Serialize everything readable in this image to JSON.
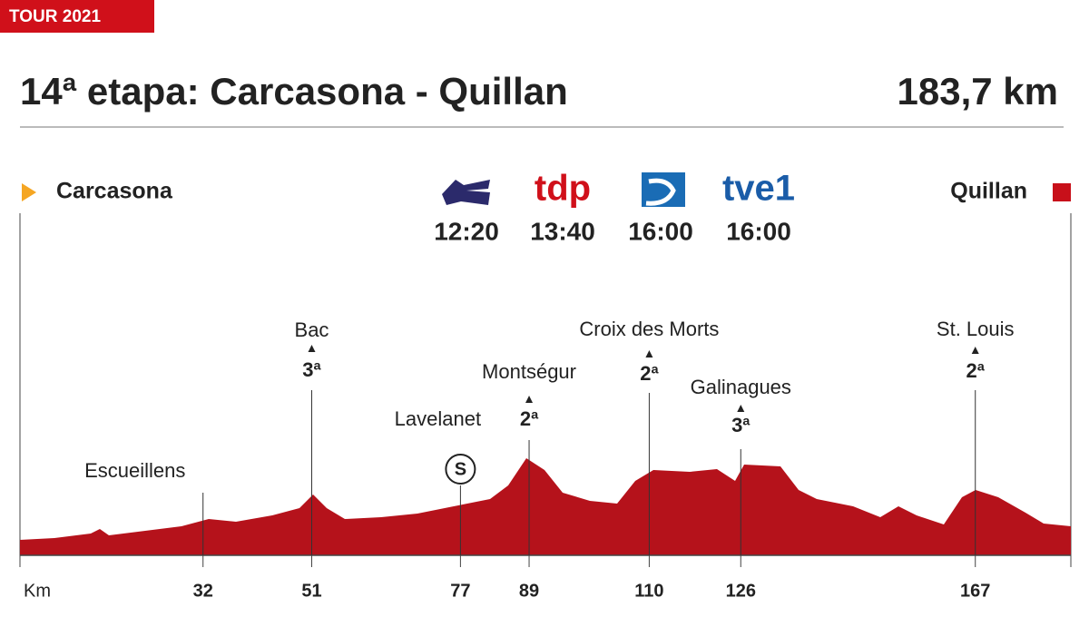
{
  "chart_data": {
    "type": "profile",
    "label": "TOUR 2021",
    "title": "14ª etapa: Carcasona - Quillan",
    "distance": "183,7 km",
    "start": "Carcasona",
    "finish": "Quillan",
    "broadcasters": [
      {
        "time": "12:20"
      },
      {
        "logo": "tdp",
        "time": "13:40"
      },
      {
        "time": "16:00"
      },
      {
        "logo": "tve1",
        "time": "16:00"
      }
    ],
    "color": "#b5121b",
    "xlim": [
      0,
      183.7
    ],
    "xticks": [
      {
        "value": 0,
        "label": "Km"
      },
      32,
      51,
      77,
      89,
      110,
      126,
      167
    ],
    "points": [
      {
        "name": "Escueillens",
        "km": 32
      },
      {
        "name": "Bac",
        "category": "3ª",
        "km": 51
      },
      {
        "name": "Lavelanet",
        "sprint": "S",
        "km": 77
      },
      {
        "name": "Montségur",
        "category": "2ª",
        "km": 89
      },
      {
        "name": "Croix des Morts",
        "category": "2ª",
        "km": 110
      },
      {
        "name": "Galinagues",
        "category": "3ª",
        "km": 126
      },
      {
        "name": "St. Louis",
        "category": "2ª",
        "km": 167
      }
    ]
  }
}
